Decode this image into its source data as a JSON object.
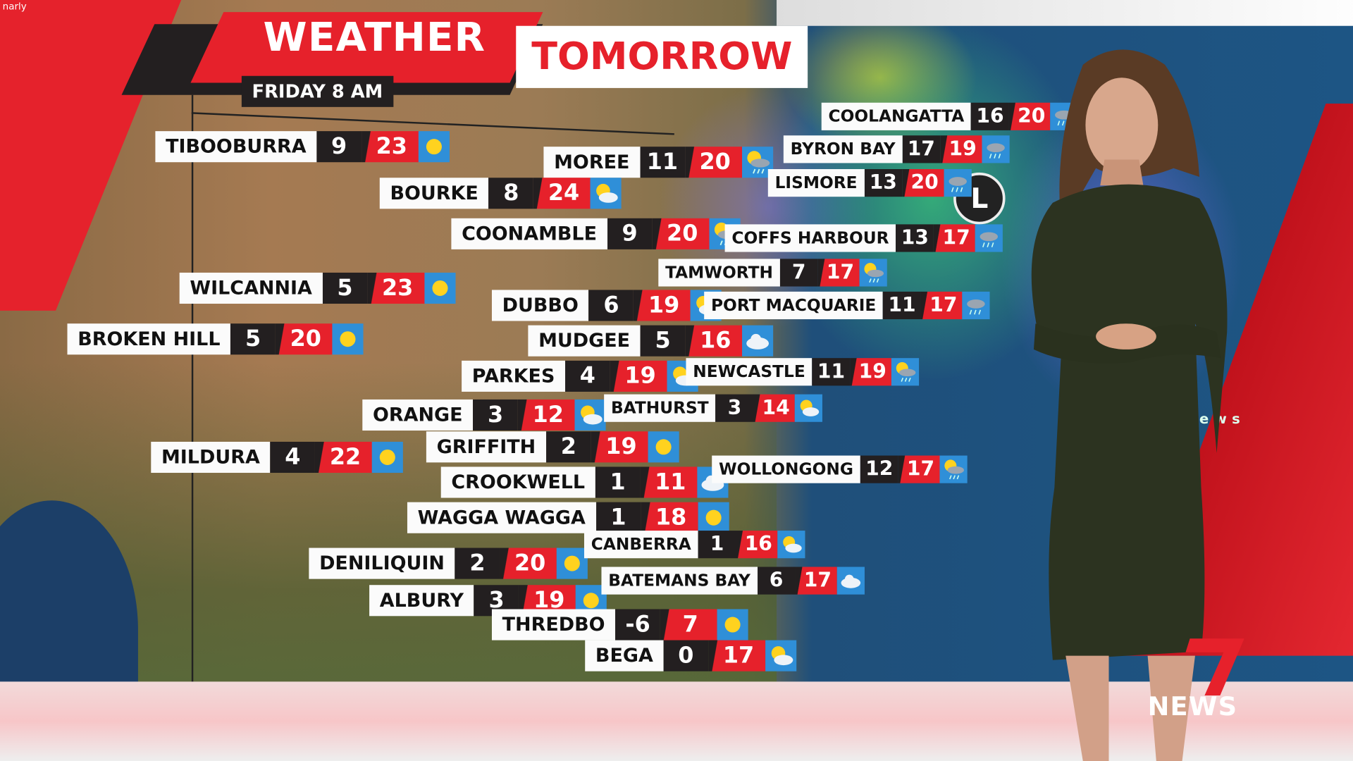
{
  "watermark": "narly",
  "header": {
    "title_left": "WEATHER",
    "title_right": "TOMORROW",
    "subtitle": "FRIDAY 8 AM"
  },
  "map": {
    "pressure_marker": "L",
    "partial_text": "ews"
  },
  "brand": {
    "logo_text": "NEWS",
    "logo_number": "7",
    "accent": "#e6212b"
  },
  "colors": {
    "label_bg": "#fbfbfb",
    "min_bg": "#231f20",
    "max_bg": "#e6212b",
    "icon_bg": "#2f8fd8"
  },
  "cities": [
    {
      "name": "TIBOOBURRA",
      "min": "9",
      "max": "23",
      "icon": "sun-icon"
    },
    {
      "name": "MOREE",
      "min": "11",
      "max": "20",
      "icon": "sun-showers-icon"
    },
    {
      "name": "BOURKE",
      "min": "8",
      "max": "24",
      "icon": "partly-cloudy-icon"
    },
    {
      "name": "COONAMBLE",
      "min": "9",
      "max": "20",
      "icon": "sun-showers-icon"
    },
    {
      "name": "WILCANNIA",
      "min": "5",
      "max": "23",
      "icon": "sun-icon"
    },
    {
      "name": "BROKEN HILL",
      "min": "5",
      "max": "20",
      "icon": "sun-icon"
    },
    {
      "name": "DUBBO",
      "min": "6",
      "max": "19",
      "icon": "partly-cloudy-icon"
    },
    {
      "name": "MUDGEE",
      "min": "5",
      "max": "16",
      "icon": "cloudy-icon"
    },
    {
      "name": "PARKES",
      "min": "4",
      "max": "19",
      "icon": "partly-cloudy-icon"
    },
    {
      "name": "ORANGE",
      "min": "3",
      "max": "12",
      "icon": "partly-cloudy-icon"
    },
    {
      "name": "MILDURA",
      "min": "4",
      "max": "22",
      "icon": "sun-icon"
    },
    {
      "name": "GRIFFITH",
      "min": "2",
      "max": "19",
      "icon": "sun-icon"
    },
    {
      "name": "CROOKWELL",
      "min": "1",
      "max": "11",
      "icon": "cloudy-icon"
    },
    {
      "name": "WAGGA WAGGA",
      "min": "1",
      "max": "18",
      "icon": "sun-icon"
    },
    {
      "name": "DENILIQUIN",
      "min": "2",
      "max": "20",
      "icon": "sun-icon"
    },
    {
      "name": "ALBURY",
      "min": "3",
      "max": "19",
      "icon": "sun-icon"
    },
    {
      "name": "THREDBO",
      "min": "-6",
      "max": "7",
      "icon": "sun-icon"
    },
    {
      "name": "BEGA",
      "min": "0",
      "max": "17",
      "icon": "partly-cloudy-icon"
    },
    {
      "name": "CANBERRA",
      "min": "1",
      "max": "16",
      "icon": "partly-cloudy-icon"
    },
    {
      "name": "BATEMANS BAY",
      "min": "6",
      "max": "17",
      "icon": "cloudy-icon"
    },
    {
      "name": "WOLLONGONG",
      "min": "12",
      "max": "17",
      "icon": "sun-showers-icon"
    },
    {
      "name": "NEWCASTLE",
      "min": "11",
      "max": "19",
      "icon": "sun-showers-icon"
    },
    {
      "name": "BATHURST",
      "min": "3",
      "max": "14",
      "icon": "partly-cloudy-icon"
    },
    {
      "name": "PORT MACQUARIE",
      "min": "11",
      "max": "17",
      "icon": "showers-icon"
    },
    {
      "name": "TAMWORTH",
      "min": "7",
      "max": "17",
      "icon": "sun-showers-icon"
    },
    {
      "name": "COFFS HARBOUR",
      "min": "13",
      "max": "17",
      "icon": "showers-icon"
    },
    {
      "name": "LISMORE",
      "min": "13",
      "max": "20",
      "icon": "showers-icon"
    },
    {
      "name": "BYRON BAY",
      "min": "17",
      "max": "19",
      "icon": "showers-icon"
    },
    {
      "name": "COOLANGATTA",
      "min": "16",
      "max": "20",
      "icon": "showers-icon"
    }
  ]
}
